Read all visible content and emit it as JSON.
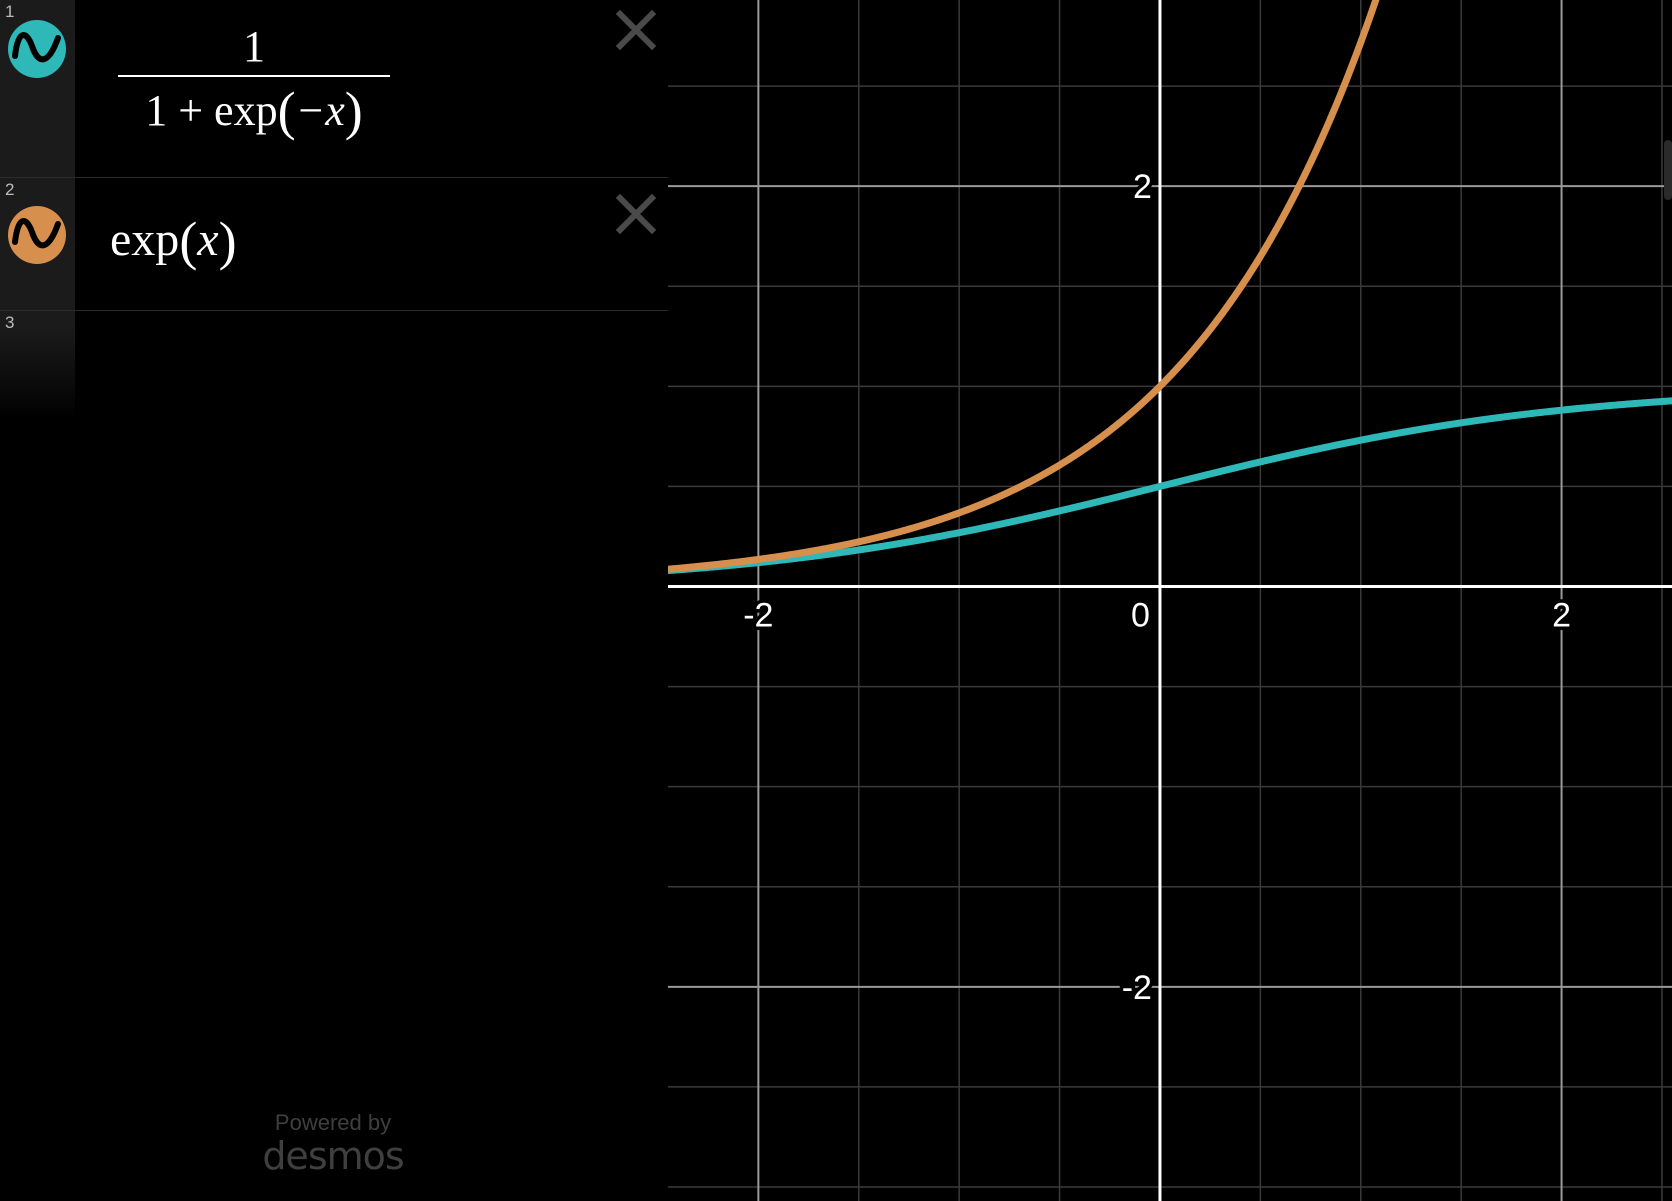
{
  "expressions": [
    {
      "index": "1",
      "color": "#2eb8b8",
      "icon": "wave-graph-icon",
      "numerator": "1",
      "denominator_lead": "1 + exp",
      "denominator_arg": "−x"
    },
    {
      "index": "2",
      "color": "#d68f4d",
      "icon": "wave-graph-icon",
      "func": "exp",
      "arg": "x"
    },
    {
      "index": "3"
    }
  ],
  "branding": {
    "powered_by": "Powered by",
    "brand": "desmos"
  },
  "chart_data": {
    "type": "line",
    "xlim": [
      -2.45,
      2.55
    ],
    "ylim": [
      -3.07,
      2.93
    ],
    "grid": true,
    "minor_step": 0.5,
    "x_ticks": [
      {
        "value": -2,
        "label": "-2"
      },
      {
        "value": 0,
        "label": "0"
      },
      {
        "value": 2,
        "label": "2"
      }
    ],
    "y_ticks": [
      {
        "value": 2,
        "label": "2"
      },
      {
        "value": -2,
        "label": "-2"
      }
    ],
    "series": [
      {
        "function": "sigmoid",
        "color": "#2eb8b8"
      },
      {
        "function": "exp",
        "color": "#d68f4d"
      }
    ]
  }
}
